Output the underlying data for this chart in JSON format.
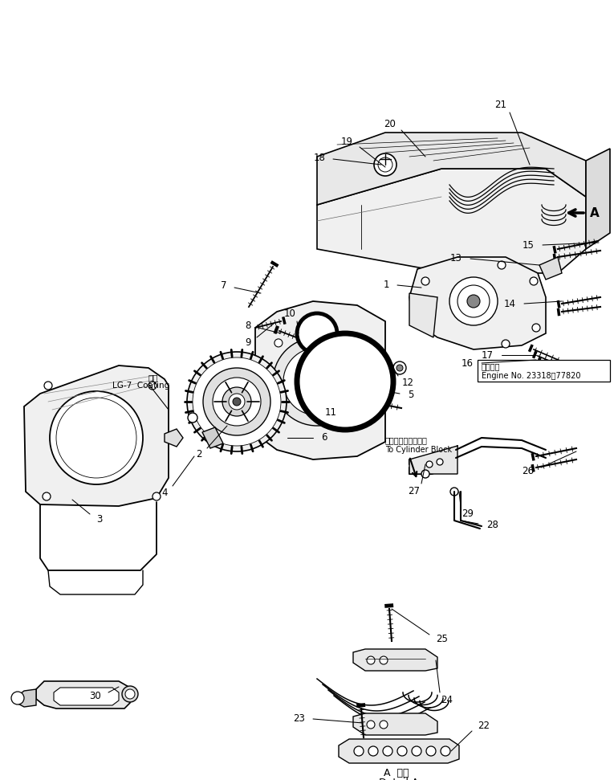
{
  "background_color": "#ffffff",
  "line_color": "#000000",
  "fig_width": 7.65,
  "fig_height": 9.71,
  "dpi": 100,
  "part_labels": [
    [
      "1",
      490,
      358
    ],
    [
      "2",
      258,
      560
    ],
    [
      "3",
      128,
      638
    ],
    [
      "4",
      220,
      605
    ],
    [
      "5",
      500,
      488
    ],
    [
      "6",
      390,
      540
    ],
    [
      "7",
      295,
      358
    ],
    [
      "8",
      330,
      408
    ],
    [
      "9",
      325,
      420
    ],
    [
      "10",
      375,
      402
    ],
    [
      "11",
      430,
      505
    ],
    [
      "12",
      500,
      470
    ],
    [
      "13",
      590,
      322
    ],
    [
      "14",
      657,
      378
    ],
    [
      "15",
      680,
      305
    ],
    [
      "16",
      605,
      452
    ],
    [
      "17",
      630,
      445
    ],
    [
      "18",
      415,
      198
    ],
    [
      "19",
      450,
      183
    ],
    [
      "20",
      503,
      162
    ],
    [
      "21",
      638,
      140
    ],
    [
      "22",
      593,
      910
    ],
    [
      "23",
      393,
      895
    ],
    [
      "24",
      553,
      862
    ],
    [
      "25",
      540,
      790
    ],
    [
      "26",
      678,
      582
    ],
    [
      "27",
      530,
      602
    ],
    [
      "28",
      600,
      652
    ],
    [
      "29",
      578,
      630
    ],
    [
      "30",
      138,
      862
    ]
  ]
}
